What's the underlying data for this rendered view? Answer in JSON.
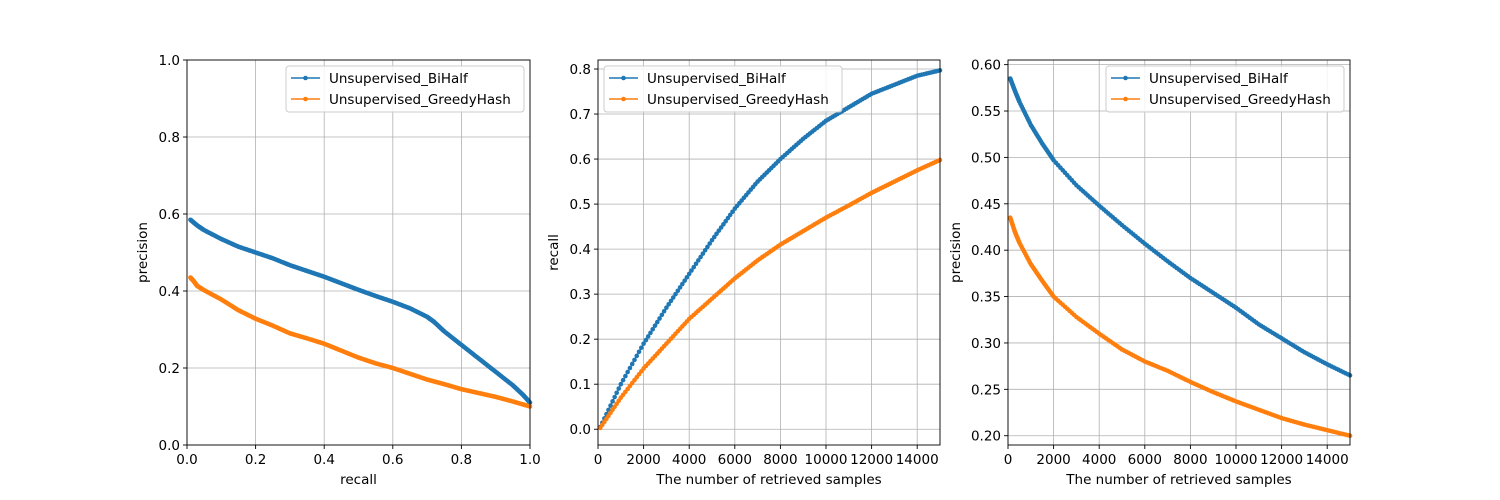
{
  "figure": {
    "legend_labels": [
      "Unsupervised_BiHalf",
      "Unsupervised_GreedyHash"
    ]
  },
  "colors": {
    "BiHalf": "#1f77b4",
    "GreedyHash": "#ff7f0e",
    "grid": "#b0b0b0",
    "axes": "#000000"
  },
  "chart_data": [
    {
      "type": "line",
      "xlabel": "recall",
      "ylabel": "precision",
      "xlim": [
        0,
        1.0
      ],
      "ylim": [
        0,
        1.0
      ],
      "xticks": [
        0.0,
        0.2,
        0.4,
        0.6,
        0.8,
        1.0
      ],
      "xtick_labels": [
        "0.0",
        "0.2",
        "0.4",
        "0.6",
        "0.8",
        "1.0"
      ],
      "yticks": [
        0.0,
        0.2,
        0.4,
        0.6,
        0.8,
        1.0
      ],
      "ytick_labels": [
        "0.0",
        "0.2",
        "0.4",
        "0.6",
        "0.8",
        "1.0"
      ],
      "grid": true,
      "legend": "upper right",
      "series": [
        {
          "name": "Unsupervised_BiHalf",
          "marker": "dot",
          "points": [
            [
              0.01,
              0.585
            ],
            [
              0.03,
              0.57
            ],
            [
              0.05,
              0.558
            ],
            [
              0.1,
              0.535
            ],
            [
              0.15,
              0.515
            ],
            [
              0.2,
              0.5
            ],
            [
              0.25,
              0.485
            ],
            [
              0.3,
              0.467
            ],
            [
              0.35,
              0.452
            ],
            [
              0.4,
              0.437
            ],
            [
              0.45,
              0.42
            ],
            [
              0.5,
              0.403
            ],
            [
              0.55,
              0.387
            ],
            [
              0.6,
              0.372
            ],
            [
              0.65,
              0.355
            ],
            [
              0.7,
              0.333
            ],
            [
              0.72,
              0.32
            ],
            [
              0.75,
              0.295
            ],
            [
              0.8,
              0.26
            ],
            [
              0.85,
              0.225
            ],
            [
              0.9,
              0.19
            ],
            [
              0.95,
              0.155
            ],
            [
              0.98,
              0.13
            ],
            [
              1.0,
              0.11
            ]
          ]
        },
        {
          "name": "Unsupervised_GreedyHash",
          "marker": "dot",
          "points": [
            [
              0.01,
              0.435
            ],
            [
              0.02,
              0.425
            ],
            [
              0.03,
              0.413
            ],
            [
              0.05,
              0.402
            ],
            [
              0.1,
              0.378
            ],
            [
              0.15,
              0.35
            ],
            [
              0.2,
              0.328
            ],
            [
              0.25,
              0.31
            ],
            [
              0.3,
              0.29
            ],
            [
              0.35,
              0.277
            ],
            [
              0.4,
              0.263
            ],
            [
              0.45,
              0.245
            ],
            [
              0.5,
              0.227
            ],
            [
              0.55,
              0.212
            ],
            [
              0.6,
              0.2
            ],
            [
              0.65,
              0.185
            ],
            [
              0.7,
              0.17
            ],
            [
              0.75,
              0.158
            ],
            [
              0.8,
              0.145
            ],
            [
              0.85,
              0.135
            ],
            [
              0.9,
              0.125
            ],
            [
              0.95,
              0.113
            ],
            [
              1.0,
              0.1
            ]
          ]
        }
      ]
    },
    {
      "type": "line",
      "xlabel": "The number of retrieved samples",
      "ylabel": "recall",
      "xlim": [
        0,
        15000
      ],
      "ylim": [
        -0.035,
        0.82
      ],
      "xticks": [
        0,
        2000,
        4000,
        6000,
        8000,
        10000,
        12000,
        14000
      ],
      "xtick_labels": [
        "0",
        "2000",
        "4000",
        "6000",
        "8000",
        "10000",
        "12000",
        "14000"
      ],
      "yticks": [
        0.0,
        0.1,
        0.2,
        0.3,
        0.4,
        0.5,
        0.6,
        0.7,
        0.8
      ],
      "ytick_labels": [
        "0.0",
        "0.1",
        "0.2",
        "0.3",
        "0.4",
        "0.5",
        "0.6",
        "0.7",
        "0.8"
      ],
      "grid": true,
      "legend": "upper left",
      "series": [
        {
          "name": "Unsupervised_BiHalf",
          "marker": "dot",
          "points": [
            [
              100,
              0.005
            ],
            [
              1000,
              0.1
            ],
            [
              2000,
              0.19
            ],
            [
              3000,
              0.27
            ],
            [
              4000,
              0.345
            ],
            [
              5000,
              0.42
            ],
            [
              6000,
              0.49
            ],
            [
              7000,
              0.55
            ],
            [
              8000,
              0.6
            ],
            [
              9000,
              0.645
            ],
            [
              10000,
              0.685
            ],
            [
              11000,
              0.715
            ],
            [
              12000,
              0.745
            ],
            [
              13000,
              0.765
            ],
            [
              14000,
              0.785
            ],
            [
              15000,
              0.797
            ]
          ]
        },
        {
          "name": "Unsupervised_GreedyHash",
          "marker": "dot",
          "points": [
            [
              100,
              0.003
            ],
            [
              1000,
              0.07
            ],
            [
              2000,
              0.135
            ],
            [
              3000,
              0.19
            ],
            [
              4000,
              0.245
            ],
            [
              5000,
              0.29
            ],
            [
              6000,
              0.335
            ],
            [
              7000,
              0.375
            ],
            [
              8000,
              0.41
            ],
            [
              9000,
              0.44
            ],
            [
              10000,
              0.47
            ],
            [
              11000,
              0.497
            ],
            [
              12000,
              0.525
            ],
            [
              13000,
              0.55
            ],
            [
              14000,
              0.575
            ],
            [
              15000,
              0.598
            ]
          ]
        }
      ]
    },
    {
      "type": "line",
      "xlabel": "The number of retrieved samples",
      "ylabel": "precision",
      "xlim": [
        0,
        15000
      ],
      "ylim": [
        0.19,
        0.605
      ],
      "xticks": [
        0,
        2000,
        4000,
        6000,
        8000,
        10000,
        12000,
        14000
      ],
      "xtick_labels": [
        "0",
        "2000",
        "4000",
        "6000",
        "8000",
        "10000",
        "12000",
        "14000"
      ],
      "yticks": [
        0.2,
        0.25,
        0.3,
        0.35,
        0.4,
        0.45,
        0.5,
        0.55,
        0.6
      ],
      "ytick_labels": [
        "0.20",
        "0.25",
        "0.30",
        "0.35",
        "0.40",
        "0.45",
        "0.50",
        "0.55",
        "0.60"
      ],
      "grid": true,
      "legend": "upper right",
      "series": [
        {
          "name": "Unsupervised_BiHalf",
          "marker": "dot",
          "points": [
            [
              100,
              0.585
            ],
            [
              300,
              0.572
            ],
            [
              500,
              0.56
            ],
            [
              1000,
              0.535
            ],
            [
              1500,
              0.515
            ],
            [
              2000,
              0.497
            ],
            [
              3000,
              0.47
            ],
            [
              4000,
              0.448
            ],
            [
              5000,
              0.427
            ],
            [
              6000,
              0.407
            ],
            [
              7000,
              0.388
            ],
            [
              8000,
              0.37
            ],
            [
              9000,
              0.354
            ],
            [
              10000,
              0.338
            ],
            [
              11000,
              0.32
            ],
            [
              12000,
              0.305
            ],
            [
              13000,
              0.29
            ],
            [
              14000,
              0.277
            ],
            [
              15000,
              0.265
            ]
          ]
        },
        {
          "name": "Unsupervised_GreedyHash",
          "marker": "dot",
          "points": [
            [
              100,
              0.435
            ],
            [
              300,
              0.42
            ],
            [
              500,
              0.408
            ],
            [
              1000,
              0.385
            ],
            [
              1500,
              0.367
            ],
            [
              2000,
              0.35
            ],
            [
              3000,
              0.328
            ],
            [
              4000,
              0.31
            ],
            [
              5000,
              0.293
            ],
            [
              6000,
              0.28
            ],
            [
              7000,
              0.27
            ],
            [
              8000,
              0.258
            ],
            [
              9000,
              0.247
            ],
            [
              10000,
              0.237
            ],
            [
              11000,
              0.228
            ],
            [
              12000,
              0.219
            ],
            [
              13000,
              0.212
            ],
            [
              14000,
              0.206
            ],
            [
              15000,
              0.2
            ]
          ]
        }
      ]
    }
  ]
}
